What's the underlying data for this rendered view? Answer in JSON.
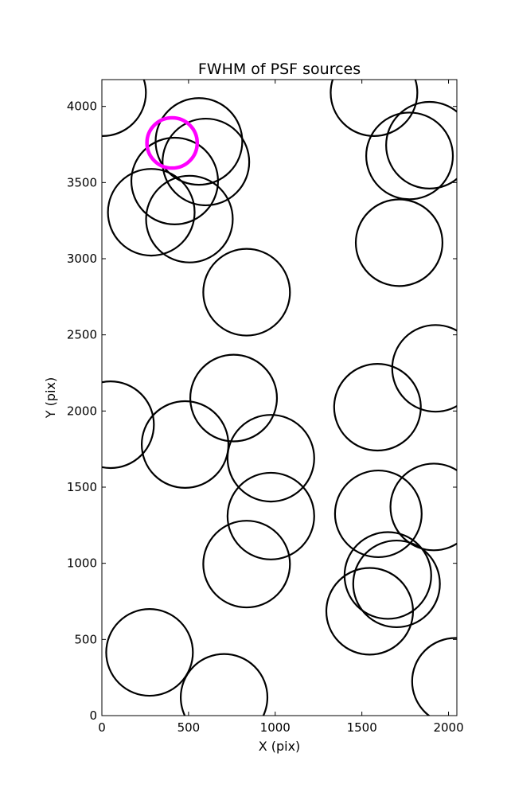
{
  "chart_data": {
    "type": "scatter",
    "title": "FWHM of PSF sources",
    "xlabel": "X (pix)",
    "ylabel": "Y (pix)",
    "xlim": [
      0,
      2048
    ],
    "ylim": [
      0,
      4176
    ],
    "xticks": [
      0,
      500,
      1000,
      1500,
      2000
    ],
    "yticks": [
      0,
      500,
      1000,
      1500,
      2000,
      2500,
      3000,
      3500,
      4000
    ],
    "xtick_labels": [
      "0",
      "500",
      "1000",
      "1500",
      "2000"
    ],
    "ytick_labels": [
      "0",
      "500",
      "1000",
      "1500",
      "2000",
      "2500",
      "3000",
      "3500",
      "4000"
    ],
    "grid": false,
    "marker": "circle (radius = FWHM in pixels)",
    "series": [
      {
        "color": "#000000",
        "points": [
          {
            "x": 4,
            "y": 4090,
            "r": 250
          },
          {
            "x": 560,
            "y": 3770,
            "r": 250
          },
          {
            "x": 600,
            "y": 3635,
            "r": 250
          },
          {
            "x": 420,
            "y": 3510,
            "r": 250
          },
          {
            "x": 285,
            "y": 3305,
            "r": 250
          },
          {
            "x": 505,
            "y": 3260,
            "r": 250
          },
          {
            "x": 1570,
            "y": 4090,
            "r": 250
          },
          {
            "x": 1775,
            "y": 3675,
            "r": 250
          },
          {
            "x": 1890,
            "y": 3745,
            "r": 250
          },
          {
            "x": 1715,
            "y": 3105,
            "r": 250
          },
          {
            "x": 835,
            "y": 2780,
            "r": 250
          },
          {
            "x": 1925,
            "y": 2280,
            "r": 250
          },
          {
            "x": 760,
            "y": 2085,
            "r": 250
          },
          {
            "x": 1590,
            "y": 2025,
            "r": 250
          },
          {
            "x": 50,
            "y": 1910,
            "r": 250
          },
          {
            "x": 480,
            "y": 1780,
            "r": 250
          },
          {
            "x": 975,
            "y": 1690,
            "r": 250
          },
          {
            "x": 1915,
            "y": 1370,
            "r": 250
          },
          {
            "x": 1595,
            "y": 1325,
            "r": 250
          },
          {
            "x": 975,
            "y": 1310,
            "r": 250
          },
          {
            "x": 835,
            "y": 995,
            "r": 250
          },
          {
            "x": 1650,
            "y": 920,
            "r": 250
          },
          {
            "x": 1700,
            "y": 865,
            "r": 250
          },
          {
            "x": 1545,
            "y": 685,
            "r": 250
          },
          {
            "x": 275,
            "y": 415,
            "r": 250
          },
          {
            "x": 705,
            "y": 120,
            "r": 250
          },
          {
            "x": 2040,
            "y": 225,
            "r": 250
          }
        ]
      },
      {
        "color": "#ff00ff",
        "points": [
          {
            "x": 405,
            "y": 3760,
            "r": 145
          }
        ]
      }
    ]
  }
}
